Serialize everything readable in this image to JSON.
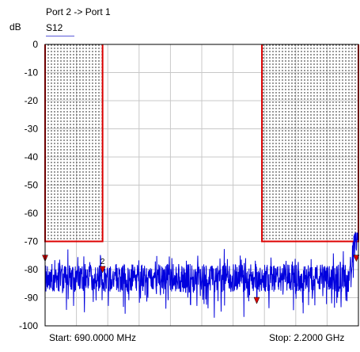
{
  "header": {
    "port_label": "Port 2 -> Port 1",
    "trace_name": "S12",
    "y_unit": "dB"
  },
  "footer": {
    "start_label": "Start: 690.0000 MHz",
    "stop_label": "Stop: 2.2000 GHz"
  },
  "colors": {
    "trace": "#0000dd",
    "limit_line": "#dd0000",
    "grid": "#c8c8c8",
    "marker": "#dd0000",
    "trace_underline": "#5a5ad8"
  },
  "chart_data": {
    "type": "line",
    "title": "S12",
    "xlabel": "",
    "ylabel": "dB",
    "xlim": [
      690,
      2200
    ],
    "ylim": [
      -100,
      0
    ],
    "yticks": [
      0,
      -10,
      -20,
      -30,
      -40,
      -50,
      -60,
      -70,
      -80,
      -90,
      -100
    ],
    "x_divisions": 10,
    "grid": true,
    "series": [
      {
        "name": "S12",
        "x_start_mhz": 690,
        "x_stop_mhz": 2200,
        "noise_floor_db": -83,
        "noise_min_db": -98,
        "noise_max_db": -72,
        "rise_end_db": -67
      }
    ],
    "limit_masks": [
      {
        "x_start_mhz": 690,
        "x_stop_mhz": 967,
        "top_db": 0,
        "bottom_db": -70
      },
      {
        "x_start_mhz": 1735,
        "x_stop_mhz": 2200,
        "top_db": 0,
        "bottom_db": -70
      }
    ],
    "markers": [
      {
        "id": "1",
        "label": "",
        "x_mhz": 690,
        "y_db": -76
      },
      {
        "id": "2",
        "label": "2",
        "x_mhz": 967,
        "y_db": -80
      },
      {
        "id": "3",
        "label": "",
        "x_mhz": 1710,
        "y_db": -91
      },
      {
        "id": "4",
        "label": "",
        "x_mhz": 2190,
        "y_db": -76
      }
    ]
  }
}
